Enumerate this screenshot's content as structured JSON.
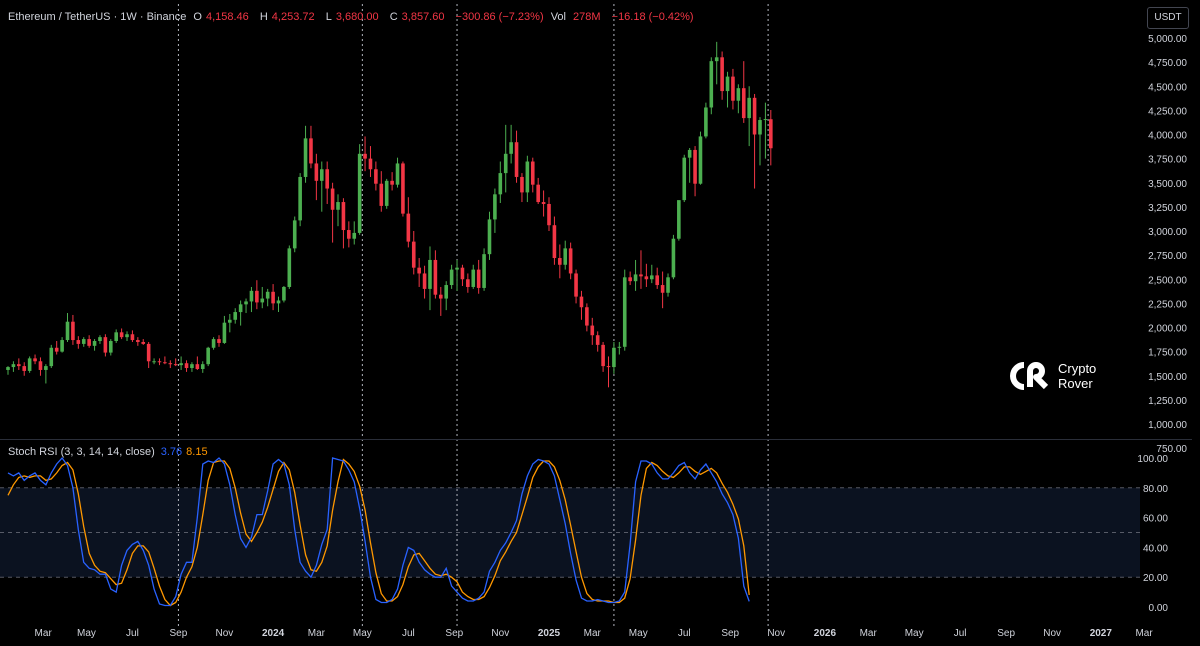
{
  "header": {
    "symbol": "Ethereum / TetherUS · 1W · Binance",
    "o_label": "O",
    "o": "4,158.46",
    "h_label": "H",
    "h": "4,253.72",
    "l_label": "L",
    "l": "3,680.00",
    "c_label": "C",
    "c": "3,857.60",
    "change": "−300.86 (−7.23%)",
    "vol_label": "Vol",
    "vol": "278M",
    "vol_change": "−16.18 (−0.42%)"
  },
  "currency_button": "USDT",
  "logo": {
    "line1": "Crypto",
    "line2": "Rover"
  },
  "indicator": {
    "name": "Stoch RSI (3, 3, 14, 14, close)",
    "k": "3.76",
    "d": "8.15"
  },
  "colors": {
    "up": "#4caf50",
    "down": "#f23645",
    "k_line": "#2962ff",
    "d_line": "#ff9800",
    "band": "#0b1220"
  },
  "chart_data": [
    {
      "type": "candlestick",
      "title": "Ethereum / TetherUS · 1W · Binance",
      "interval": "1W",
      "y_ticks": [
        "750.00",
        "1,000.00",
        "1,250.00",
        "1,500.00",
        "1,750.00",
        "2,000.00",
        "2,250.00",
        "2,500.00",
        "2,750.00",
        "3,000.00",
        "3,250.00",
        "3,500.00",
        "3,750.00",
        "4,000.00",
        "4,250.00",
        "4,500.00",
        "4,750.00",
        "5,000.00"
      ],
      "ylim": [
        650,
        5130
      ],
      "x_ticks": [
        "Mar",
        "May",
        "Jul",
        "Sep",
        "Nov",
        "2024",
        "Mar",
        "May",
        "Jul",
        "Sep",
        "Nov",
        "2025",
        "Mar",
        "May",
        "Jul",
        "Sep",
        "Nov",
        "2026",
        "Mar",
        "May",
        "Jul",
        "Sep",
        "Nov",
        "2027",
        "Mar"
      ],
      "x_tick_weeks": [
        6.5,
        14.5,
        23.0,
        31.5,
        40.0,
        49.0,
        57.0,
        65.5,
        74.0,
        82.5,
        91.0,
        100.0,
        108.0,
        116.5,
        125.0,
        133.5,
        142.0,
        151.0,
        159.0,
        167.5,
        176.0,
        184.5,
        193.0,
        202.0,
        210.0
      ],
      "vertical_markers_week": [
        31.5,
        65.5,
        83.0,
        112.0,
        140.5
      ],
      "grid": false,
      "candles": [
        [
          1560,
          1600,
          1510,
          1590
        ],
        [
          1590,
          1650,
          1540,
          1620
        ],
        [
          1620,
          1680,
          1560,
          1600
        ],
        [
          1600,
          1640,
          1500,
          1550
        ],
        [
          1550,
          1700,
          1530,
          1680
        ],
        [
          1680,
          1720,
          1620,
          1650
        ],
        [
          1650,
          1690,
          1500,
          1560
        ],
        [
          1560,
          1620,
          1420,
          1600
        ],
        [
          1600,
          1820,
          1580,
          1790
        ],
        [
          1790,
          1860,
          1720,
          1750
        ],
        [
          1750,
          1900,
          1740,
          1870
        ],
        [
          1870,
          2150,
          1850,
          2060
        ],
        [
          2060,
          2130,
          1820,
          1870
        ],
        [
          1870,
          1910,
          1780,
          1830
        ],
        [
          1830,
          1900,
          1800,
          1880
        ],
        [
          1880,
          1920,
          1790,
          1810
        ],
        [
          1810,
          1880,
          1760,
          1860
        ],
        [
          1860,
          1920,
          1830,
          1900
        ],
        [
          1900,
          1930,
          1700,
          1740
        ],
        [
          1740,
          1880,
          1710,
          1860
        ],
        [
          1860,
          1980,
          1840,
          1950
        ],
        [
          1950,
          1990,
          1880,
          1900
        ],
        [
          1900,
          1960,
          1860,
          1930
        ],
        [
          1930,
          1970,
          1850,
          1870
        ],
        [
          1870,
          1900,
          1810,
          1850
        ],
        [
          1850,
          1880,
          1820,
          1830
        ],
        [
          1830,
          1850,
          1580,
          1650
        ],
        [
          1650,
          1680,
          1620,
          1650
        ],
        [
          1650,
          1680,
          1610,
          1640
        ],
        [
          1640,
          1700,
          1620,
          1630
        ],
        [
          1630,
          1660,
          1580,
          1620
        ],
        [
          1620,
          1680,
          1600,
          1610
        ],
        [
          1610,
          1700,
          1560,
          1630
        ],
        [
          1630,
          1660,
          1540,
          1580
        ],
        [
          1580,
          1640,
          1540,
          1620
        ],
        [
          1620,
          1700,
          1560,
          1570
        ],
        [
          1570,
          1650,
          1530,
          1620
        ],
        [
          1620,
          1800,
          1600,
          1790
        ],
        [
          1790,
          1900,
          1770,
          1880
        ],
        [
          1880,
          1920,
          1800,
          1840
        ],
        [
          1840,
          2120,
          1830,
          2050
        ],
        [
          2050,
          2140,
          1950,
          2080
        ],
        [
          2080,
          2200,
          2040,
          2160
        ],
        [
          2160,
          2280,
          2020,
          2240
        ],
        [
          2240,
          2300,
          2150,
          2270
        ],
        [
          2270,
          2420,
          2160,
          2380
        ],
        [
          2380,
          2490,
          2190,
          2260
        ],
        [
          2260,
          2420,
          2200,
          2300
        ],
        [
          2300,
          2400,
          2220,
          2370
        ],
        [
          2370,
          2450,
          2180,
          2250
        ],
        [
          2250,
          2320,
          2160,
          2280
        ],
        [
          2280,
          2430,
          2260,
          2420
        ],
        [
          2420,
          2850,
          2400,
          2820
        ],
        [
          2820,
          3150,
          2780,
          3110
        ],
        [
          3110,
          3600,
          3050,
          3560
        ],
        [
          3560,
          4090,
          3500,
          3960
        ],
        [
          3960,
          4090,
          3650,
          3700
        ],
        [
          3700,
          3800,
          3320,
          3520
        ],
        [
          3520,
          3720,
          3200,
          3640
        ],
        [
          3640,
          3720,
          3280,
          3440
        ],
        [
          3440,
          3500,
          2880,
          3220
        ],
        [
          3220,
          3380,
          3050,
          3300
        ],
        [
          3300,
          3340,
          2820,
          3010
        ],
        [
          3010,
          3100,
          2830,
          2920
        ],
        [
          2920,
          3100,
          2860,
          2980
        ],
        [
          2980,
          3900,
          2960,
          3800
        ],
        [
          3800,
          3980,
          3620,
          3750
        ],
        [
          3750,
          3880,
          3560,
          3640
        ],
        [
          3640,
          3720,
          3420,
          3490
        ],
        [
          3490,
          3620,
          3200,
          3260
        ],
        [
          3260,
          3540,
          3230,
          3520
        ],
        [
          3520,
          3610,
          3420,
          3480
        ],
        [
          3480,
          3760,
          3450,
          3700
        ],
        [
          3700,
          3720,
          3150,
          3180
        ],
        [
          3180,
          3350,
          2830,
          2890
        ],
        [
          2890,
          3000,
          2550,
          2620
        ],
        [
          2620,
          2720,
          2420,
          2560
        ],
        [
          2560,
          2640,
          2300,
          2400
        ],
        [
          2400,
          2840,
          2180,
          2700
        ],
        [
          2700,
          2800,
          2300,
          2340
        ],
        [
          2340,
          2420,
          2120,
          2300
        ],
        [
          2300,
          2480,
          2180,
          2440
        ],
        [
          2440,
          2650,
          2400,
          2600
        ],
        [
          2600,
          2700,
          2380,
          2620
        ],
        [
          2620,
          2650,
          2430,
          2500
        ],
        [
          2500,
          2560,
          2360,
          2420
        ],
        [
          2420,
          2650,
          2400,
          2600
        ],
        [
          2600,
          2700,
          2350,
          2410
        ],
        [
          2410,
          2820,
          2380,
          2760
        ],
        [
          2760,
          3200,
          2700,
          3120
        ],
        [
          3120,
          3440,
          2980,
          3380
        ],
        [
          3380,
          3720,
          3290,
          3600
        ],
        [
          3600,
          4100,
          3400,
          3800
        ],
        [
          3800,
          4100,
          3700,
          3920
        ],
        [
          3920,
          4040,
          3500,
          3560
        ],
        [
          3560,
          3600,
          3300,
          3400
        ],
        [
          3400,
          3780,
          3300,
          3720
        ],
        [
          3720,
          3760,
          3400,
          3480
        ],
        [
          3480,
          3550,
          3280,
          3300
        ],
        [
          3300,
          3420,
          3150,
          3280
        ],
        [
          3280,
          3350,
          3000,
          3060
        ],
        [
          3060,
          3150,
          2650,
          2720
        ],
        [
          2720,
          2860,
          2510,
          2650
        ],
        [
          2650,
          2900,
          2600,
          2820
        ],
        [
          2820,
          2880,
          2500,
          2560
        ],
        [
          2560,
          2600,
          2250,
          2320
        ],
        [
          2320,
          2380,
          2080,
          2210
        ],
        [
          2210,
          2250,
          1960,
          2020
        ],
        [
          2020,
          2100,
          1820,
          1920
        ],
        [
          1920,
          1960,
          1750,
          1820
        ],
        [
          1820,
          1850,
          1540,
          1600
        ],
        [
          1600,
          1700,
          1380,
          1590
        ],
        [
          1590,
          1850,
          1520,
          1790
        ],
        [
          1790,
          1850,
          1720,
          1800
        ],
        [
          1800,
          2600,
          1760,
          2520
        ],
        [
          2520,
          2580,
          2440,
          2480
        ],
        [
          2480,
          2700,
          2380,
          2550
        ],
        [
          2550,
          2800,
          2400,
          2530
        ],
        [
          2530,
          2660,
          2420,
          2500
        ],
        [
          2500,
          2650,
          2460,
          2540
        ],
        [
          2540,
          2620,
          2400,
          2440
        ],
        [
          2440,
          2580,
          2200,
          2360
        ],
        [
          2360,
          2560,
          2320,
          2520
        ],
        [
          2520,
          2960,
          2500,
          2920
        ],
        [
          2920,
          3280,
          2900,
          3320
        ],
        [
          3320,
          3790,
          3300,
          3760
        ],
        [
          3760,
          3860,
          3500,
          3840
        ],
        [
          3840,
          3880,
          3360,
          3490
        ],
        [
          3490,
          4030,
          3480,
          3980
        ],
        [
          3980,
          4330,
          3960,
          4280
        ],
        [
          4280,
          4800,
          4210,
          4760
        ],
        [
          4760,
          4960,
          4520,
          4800
        ],
        [
          4800,
          4860,
          4360,
          4450
        ],
        [
          4450,
          4650,
          4280,
          4600
        ],
        [
          4600,
          4680,
          4260,
          4350
        ],
        [
          4350,
          4520,
          4220,
          4480
        ],
        [
          4480,
          4760,
          4120,
          4170
        ],
        [
          4170,
          4500,
          3880,
          4380
        ],
        [
          4380,
          4420,
          3440,
          4000
        ],
        [
          4000,
          4180,
          3680,
          4150
        ],
        [
          4150,
          4330,
          3750,
          4160
        ],
        [
          4158.46,
          4253.72,
          3680,
          3857.6
        ]
      ]
    },
    {
      "type": "line",
      "title": "Stoch RSI (3, 3, 14, 14, close)",
      "y_ticks": [
        "0.00",
        "20.00",
        "40.00",
        "60.00",
        "80.00",
        "100.00"
      ],
      "ylim": [
        -8,
        106
      ],
      "band": [
        20,
        80
      ],
      "dashed_levels": [
        20,
        50,
        80
      ],
      "series": [
        {
          "name": "K",
          "values": [
            90,
            88,
            90,
            85,
            88,
            90,
            85,
            82,
            90,
            96,
            100,
            95,
            80,
            52,
            30,
            26,
            25,
            22,
            22,
            12,
            10,
            28,
            38,
            42,
            44,
            38,
            28,
            12,
            2,
            1,
            1,
            7,
            22,
            30,
            30,
            60,
            96,
            98,
            97,
            100,
            96,
            82,
            62,
            46,
            40,
            47,
            62,
            62,
            78,
            96,
            99,
            96,
            82,
            52,
            30,
            24,
            20,
            28,
            42,
            52,
            100,
            99,
            98,
            92,
            84,
            66,
            44,
            20,
            5,
            3,
            3,
            5,
            12,
            28,
            40,
            38,
            30,
            25,
            22,
            20,
            20,
            26,
            14,
            10,
            6,
            4,
            4,
            6,
            10,
            24,
            30,
            38,
            43,
            50,
            58,
            76,
            88,
            96,
            99,
            98,
            96,
            88,
            72,
            56,
            36,
            18,
            6,
            4,
            4,
            5,
            4,
            3,
            3,
            4,
            10,
            42,
            84,
            98,
            98,
            96,
            90,
            86,
            86,
            90,
            95,
            97,
            90,
            86,
            92,
            96,
            90,
            84,
            76,
            70,
            62,
            46,
            14,
            3.76
          ]
        },
        {
          "name": "D",
          "values": [
            75,
            82,
            87,
            88,
            87,
            88,
            88,
            85,
            86,
            90,
            95,
            97,
            92,
            76,
            54,
            36,
            28,
            24,
            23,
            19,
            15,
            16,
            25,
            36,
            41,
            41,
            37,
            26,
            14,
            5,
            1,
            3,
            10,
            20,
            27,
            40,
            62,
            85,
            97,
            98,
            98,
            93,
            80,
            63,
            49,
            44,
            50,
            57,
            67,
            79,
            91,
            97,
            92,
            77,
            55,
            35,
            25,
            24,
            30,
            41,
            65,
            84,
            99,
            96,
            91,
            81,
            65,
            43,
            23,
            9,
            4,
            4,
            7,
            15,
            27,
            35,
            36,
            31,
            26,
            22,
            21,
            22,
            20,
            17,
            10,
            7,
            5,
            5,
            7,
            13,
            21,
            31,
            37,
            44,
            50,
            62,
            74,
            87,
            94,
            98,
            98,
            94,
            85,
            72,
            55,
            37,
            20,
            9,
            5,
            4,
            4,
            4,
            3,
            3,
            6,
            19,
            45,
            75,
            93,
            97,
            95,
            91,
            88,
            87,
            90,
            94,
            94,
            91,
            89,
            91,
            93,
            90,
            83,
            77,
            69,
            59,
            41,
            8.15
          ]
        }
      ]
    }
  ]
}
